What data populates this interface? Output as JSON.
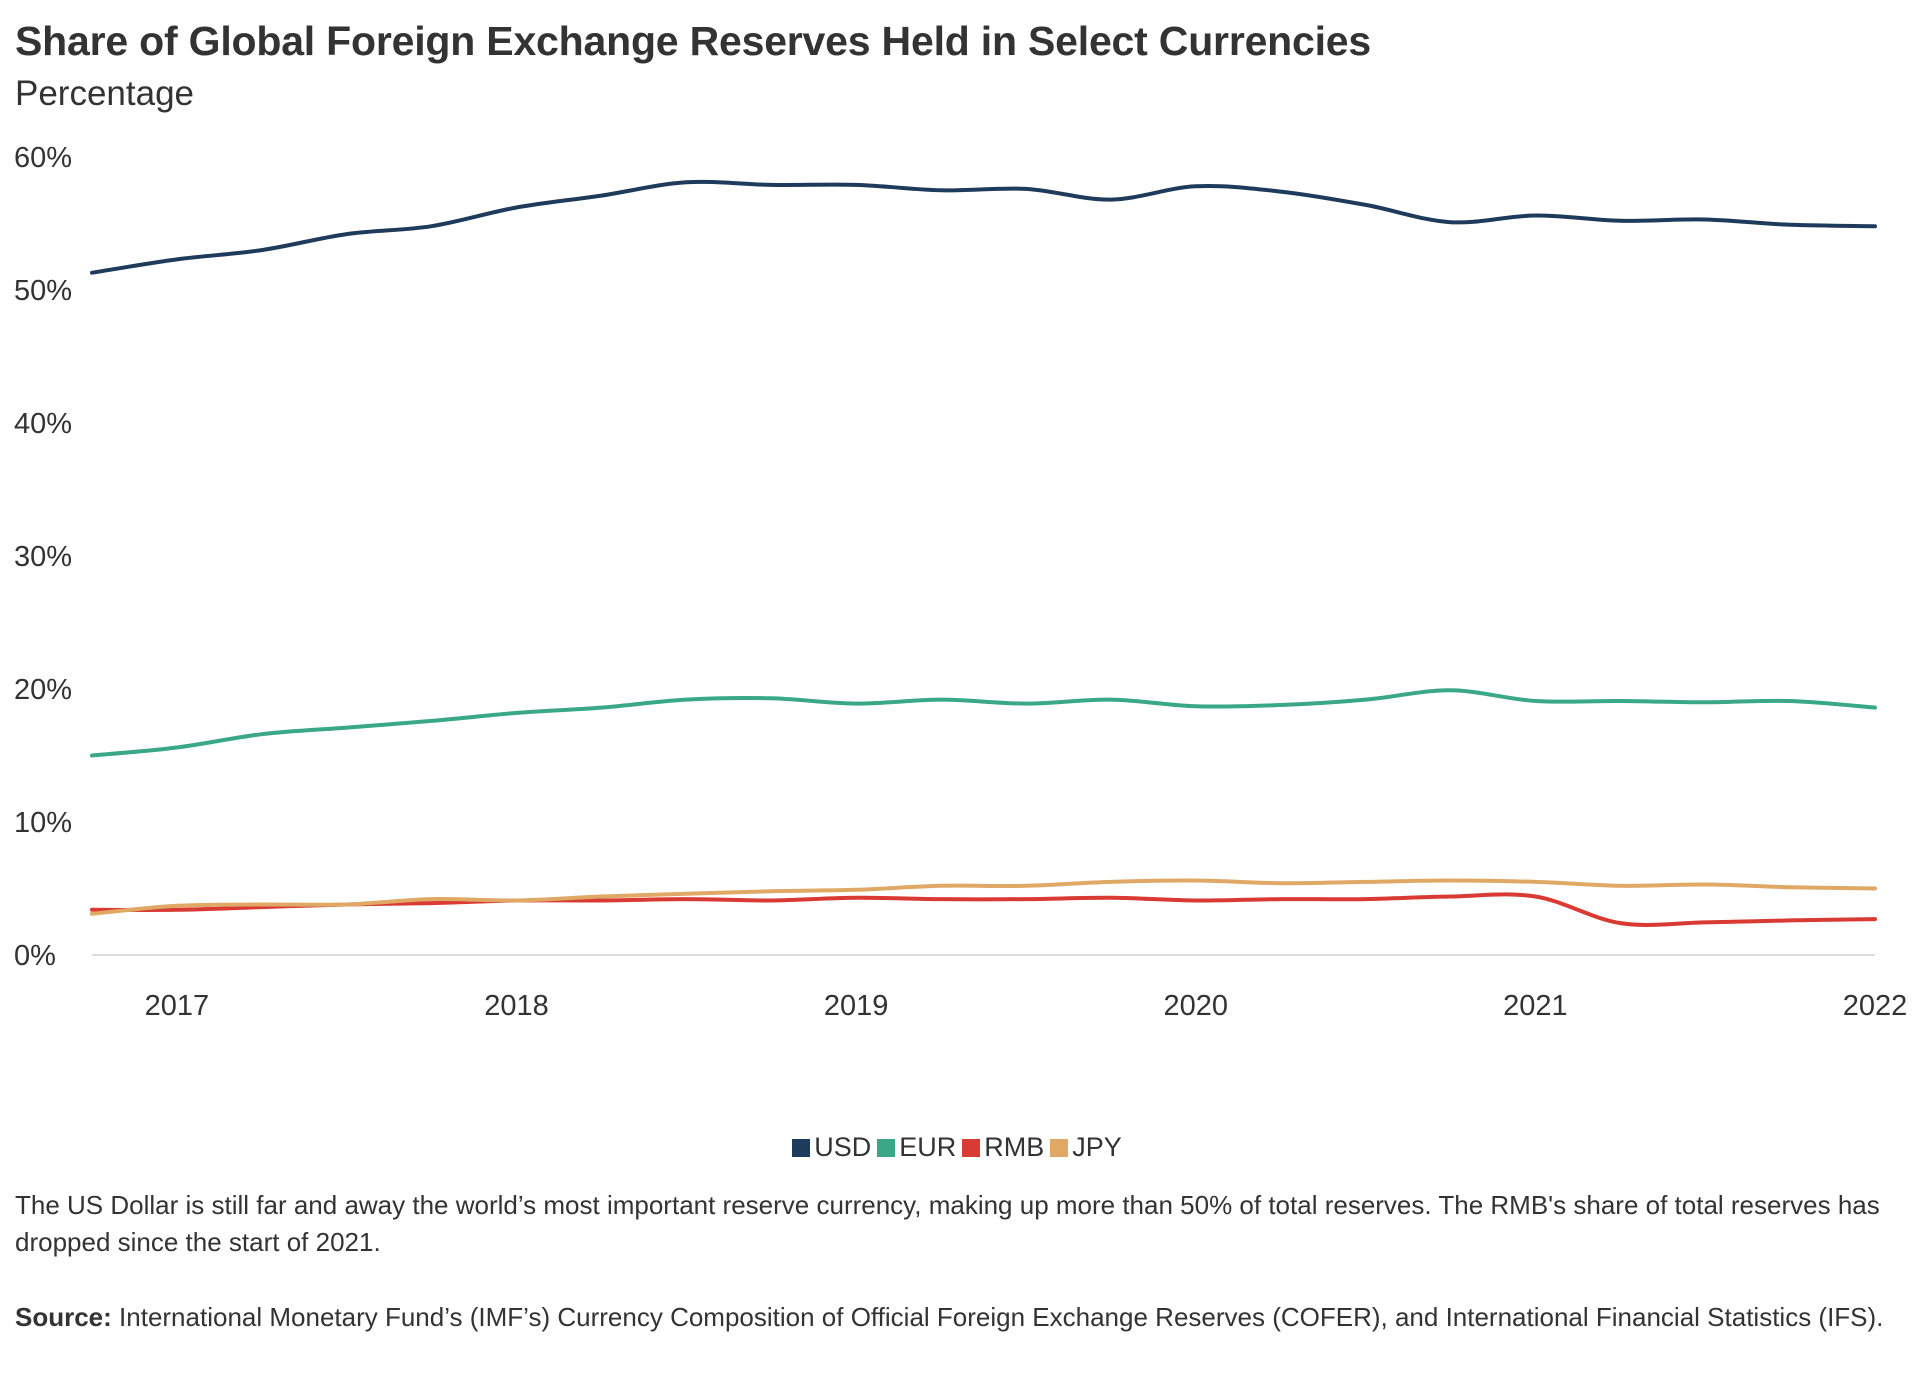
{
  "chart_data": {
    "type": "line",
    "title": "Share of Global Foreign Exchange Reserves Held in Select Currencies",
    "subtitle": "Percentage",
    "ylabel": "Percentage",
    "xlabel": "",
    "ylim": [
      0,
      60
    ],
    "xlim": [
      2016.75,
      2022.0
    ],
    "y_ticks": [
      "0%",
      "10%",
      "20%",
      "30%",
      "40%",
      "50%",
      "60%"
    ],
    "y_tick_values": [
      0,
      10,
      20,
      30,
      40,
      50,
      60
    ],
    "x_ticks": [
      "2017",
      "2018",
      "2019",
      "2020",
      "2021",
      "2022"
    ],
    "x_tick_values": [
      2017,
      2018,
      2019,
      2020,
      2021,
      2022
    ],
    "x": [
      2016.75,
      2017.0,
      2017.25,
      2017.5,
      2017.75,
      2018.0,
      2018.25,
      2018.5,
      2018.75,
      2019.0,
      2019.25,
      2019.5,
      2019.75,
      2020.0,
      2020.25,
      2020.5,
      2020.75,
      2021.0,
      2021.25,
      2021.5,
      2021.75,
      2022.0
    ],
    "series": [
      {
        "name": "USD",
        "color": "#1f3b5c",
        "values": [
          51.3,
          52.3,
          53.0,
          54.2,
          54.8,
          56.2,
          57.1,
          58.1,
          57.9,
          57.9,
          57.5,
          57.6,
          56.8,
          57.8,
          57.4,
          56.4,
          55.1,
          55.6,
          55.2,
          55.3,
          54.9,
          54.8
        ]
      },
      {
        "name": "EUR",
        "color": "#3aa887",
        "values": [
          15.0,
          15.6,
          16.6,
          17.1,
          17.6,
          18.2,
          18.6,
          19.2,
          19.3,
          18.9,
          19.2,
          18.9,
          19.2,
          18.7,
          18.8,
          19.2,
          19.9,
          19.1,
          19.1,
          19.0,
          19.1,
          18.6
        ]
      },
      {
        "name": "RMB",
        "color": "#d93a33",
        "values": [
          3.4,
          3.4,
          3.6,
          3.8,
          3.9,
          4.1,
          4.1,
          4.2,
          4.1,
          4.3,
          4.2,
          4.2,
          4.3,
          4.1,
          4.2,
          4.2,
          4.4,
          4.4,
          2.4,
          2.45,
          2.6,
          2.7
        ]
      },
      {
        "name": "JPY",
        "color": "#e0a865",
        "values": [
          3.1,
          3.7,
          3.8,
          3.8,
          4.2,
          4.1,
          4.4,
          4.6,
          4.8,
          4.9,
          5.2,
          5.2,
          5.5,
          5.6,
          5.4,
          5.5,
          5.6,
          5.5,
          5.2,
          5.3,
          5.1,
          5.0
        ]
      }
    ],
    "legend_position": "bottom-center",
    "grid": false
  },
  "note": "The US Dollar is still far and away the world’s most important reserve currency, making up more than 50% of total reserves. The RMB's share of total reserves has dropped since the start of 2021.",
  "source_label": "Source:",
  "source_text": " International Monetary Fund’s (IMF’s) Currency Composition of Official Foreign Exchange Reserves (COFER), and International Financial Statistics (IFS)."
}
